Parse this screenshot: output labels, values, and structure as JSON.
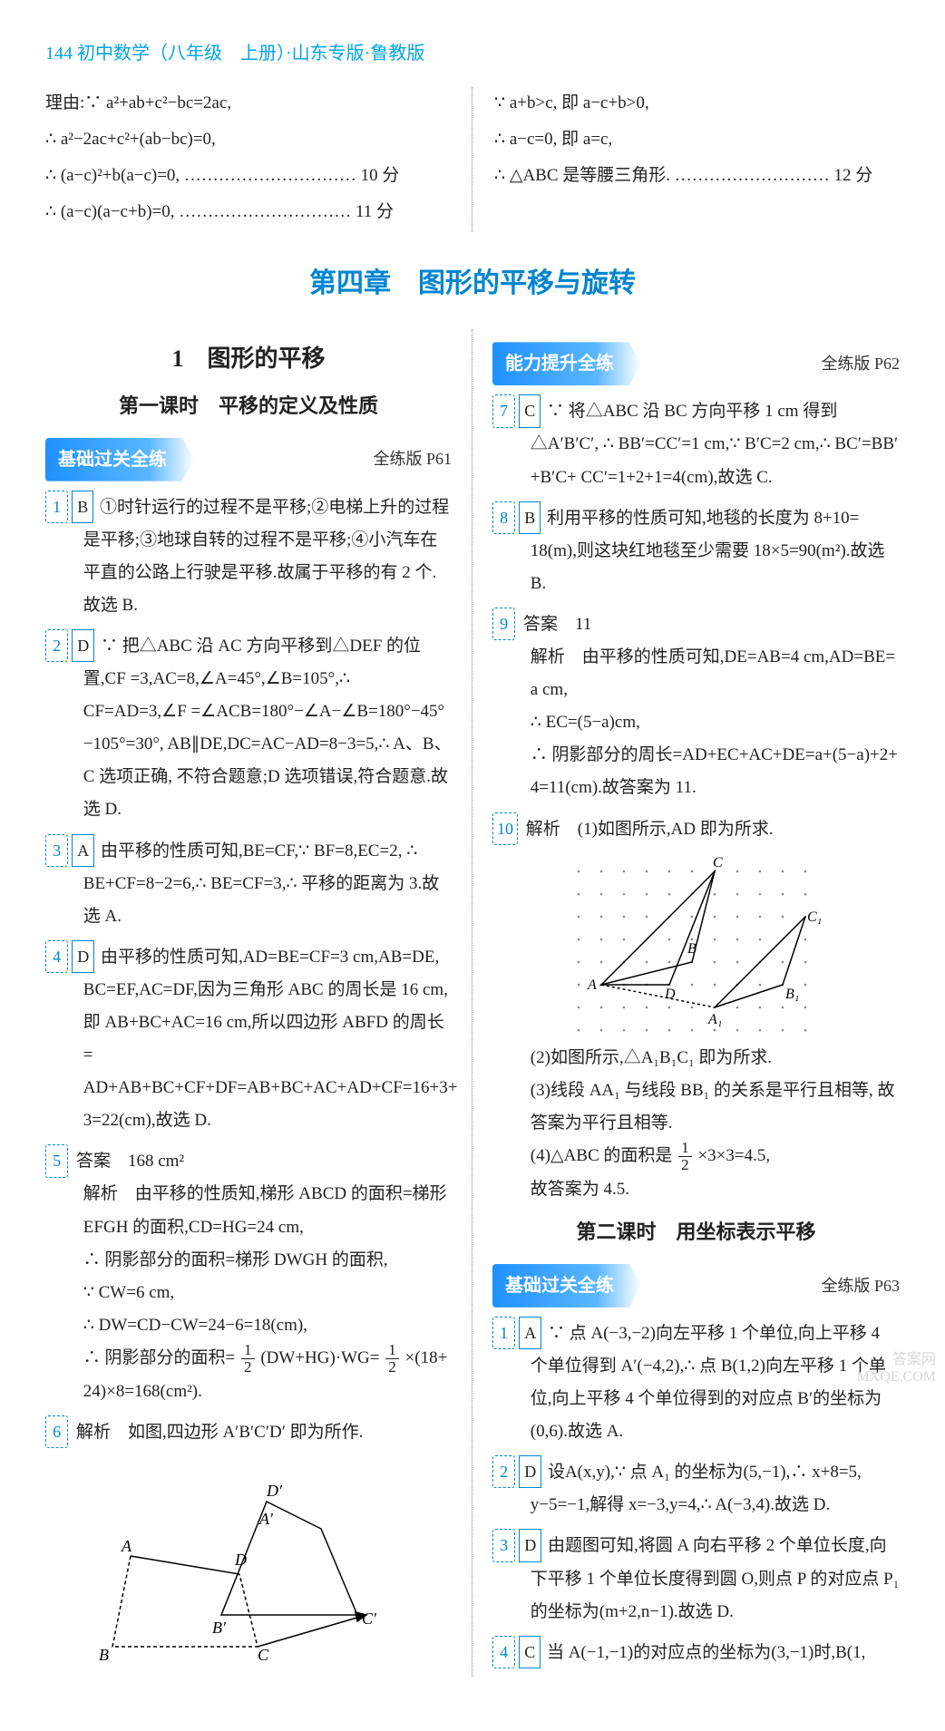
{
  "page_header": "144 初中数学（八年级　上册）·山东专版·鲁教版",
  "top_left": [
    "理由:∵ a²+ab+c²−bc=2ac,",
    "∴ a²−2ac+c²+(ab−bc)=0,",
    "∴ (a−c)²+b(a−c)=0, ………………………… 10 分",
    "∴ (a−c)(a−c+b)=0, ………………………… 11 分"
  ],
  "top_right": [
    "∵ a+b>c, 即 a−c+b>0,",
    "∴ a−c=0, 即 a=c,",
    "∴ △ABC 是等腰三角形. ……………………… 12 分"
  ],
  "chapter_title": "第四章　图形的平移与旋转",
  "left": {
    "sec_main": "1　图形的平移",
    "sec_sub": "第一课时　平移的定义及性质",
    "banner1": "基础过关全练",
    "banner1_ref": "全练版 P61",
    "q1_num": "1",
    "q1_ans": "B",
    "q1": "①时针运行的过程不是平移;②电梯上升的过程是平移;③地球自转的过程不是平移;④小汽车在平直的公路上行驶是平移.故属于平移的有 2 个.故选 B.",
    "q2_num": "2",
    "q2_ans": "D",
    "q2": "∵ 把△ABC 沿 AC 方向平移到△DEF 的位置,CF =3,AC=8,∠A=45°,∠B=105°,∴ CF=AD=3,∠F =∠ACB=180°−∠A−∠B=180°−45°−105°=30°, AB∥DE,DC=AC−AD=8−3=5,∴ A、B、C 选项正确, 不符合题意;D 选项错误,符合题意.故选 D.",
    "q3_num": "3",
    "q3_ans": "A",
    "q3": "由平移的性质可知,BE=CF,∵ BF=8,EC=2, ∴ BE+CF=8−2=6,∴ BE=CF=3,∴ 平移的距离为 3.故选 A.",
    "q4_num": "4",
    "q4_ans": "D",
    "q4": "由平移的性质可知,AD=BE=CF=3 cm,AB=DE, BC=EF,AC=DF,因为三角形 ABC 的周长是 16 cm, 即 AB+BC+AC=16 cm,所以四边形 ABFD 的周长= AD+AB+BC+CF+DF=AB+BC+AC+AD+CF=16+3+ 3=22(cm),故选 D.",
    "q5_num": "5",
    "q5_head": "答案　168 cm²",
    "q5a": "解析　由平移的性质知,梯形 ABCD 的面积=梯形 EFGH 的面积,CD=HG=24 cm,",
    "q5b": "∴ 阴影部分的面积=梯形 DWGH 的面积,",
    "q5c": "∵ CW=6 cm,",
    "q5d": "∴ DW=CD−CW=24−6=18(cm),",
    "q5e_prefix": "∴ 阴影部分的面积=",
    "q5e_mid": "(DW+HG)·WG=",
    "q5e_suffix": "×(18+",
    "q5f": "24)×8=168(cm²).",
    "q6_num": "6",
    "q6": "解析　如图,四边形 A′B′C′D′ 即为所作."
  },
  "right": {
    "banner2": "能力提升全练",
    "banner2_ref": "全练版 P62",
    "r7_num": "7",
    "r7_ans": "C",
    "r7": "∵ 将△ABC 沿 BC 方向平移 1 cm 得到△A′B′C′, ∴ BB′=CC′=1 cm,∵ B′C=2 cm,∴ BC′=BB′+B′C+ CC′=1+2+1=4(cm),故选 C.",
    "r8_num": "8",
    "r8_ans": "B",
    "r8": "利用平移的性质可知,地毯的长度为 8+10= 18(m),则这块红地毯至少需要 18×5=90(m²).故选 B.",
    "r9_num": "9",
    "r9_head": "答案　11",
    "r9a": "解析　由平移的性质可知,DE=AB=4 cm,AD=BE= a cm,",
    "r9b": "∴ EC=(5−a)cm,",
    "r9c": "∴ 阴影部分的周长=AD+EC+AC+DE=a+(5−a)+2+ 4=11(cm).故答案为 11.",
    "r10_num": "10",
    "r10_head": "解析　(1)如图所示,AD 即为所求.",
    "r10b": "(2)如图所示,△A₁B₁C₁ 即为所求.",
    "r10c": "(3)线段 AA₁ 与线段 BB₁ 的关系是平行且相等, 故答案为平行且相等.",
    "r10d_prefix": "(4)△ABC 的面积是",
    "r10d_suffix": "×3×3=4.5,",
    "r10e": "故答案为 4.5.",
    "sec_sub2": "第二课时　用坐标表示平移",
    "banner3": "基础过关全练",
    "banner3_ref": "全练版 P63",
    "s1_num": "1",
    "s1_ans": "A",
    "s1": "∵ 点 A(−3,−2)向左平移 1 个单位,向上平移 4 个单位得到 A′(−4,2),∴ 点 B(1,2)向左平移 1 个单位,向上平移 4 个单位得到的对应点 B′的坐标为 (0,6).故选 A.",
    "s2_num": "2",
    "s2_ans": "D",
    "s2": "设A(x,y),∵ 点 A₁ 的坐标为(5,−1),∴ x+8=5, y−5=−1,解得 x=−3,y=4,∴ A(−3,4).故选 D.",
    "s3_num": "3",
    "s3_ans": "D",
    "s3": "由题图可知,将圆 A 向右平移 2 个单位长度,向下平移 1 个单位长度得到圆 O,则点 P 的对应点 P₁ 的坐标为(m+2,n−1).故选 D.",
    "s4_num": "4",
    "s4_ans": "C",
    "s4": "当 A(−1,−1)的对应点的坐标为(3,−1)时,B(1,"
  },
  "watermark1": "答案网",
  "watermark2": "MXQE.COM"
}
